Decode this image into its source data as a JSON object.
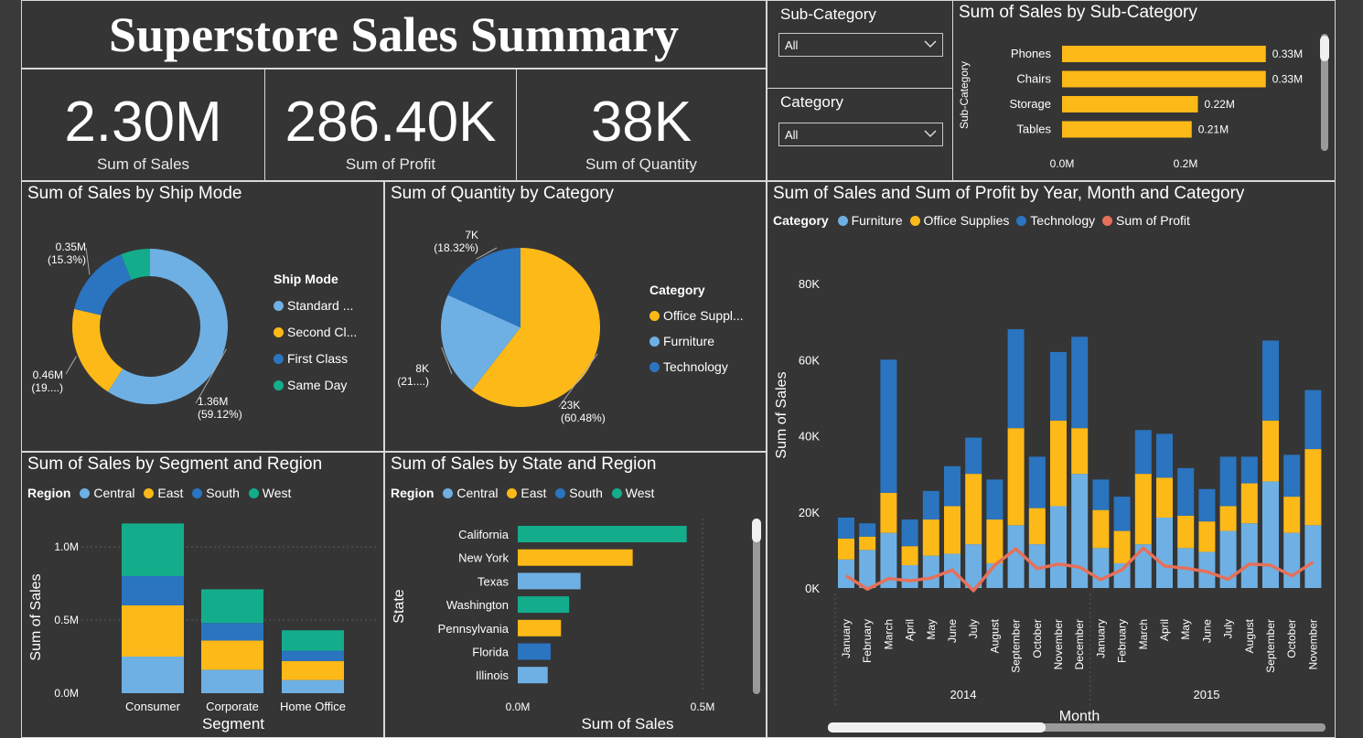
{
  "title": "Superstore Sales Summary",
  "kpis": [
    {
      "value": "2.30M",
      "label": "Sum of Sales"
    },
    {
      "value": "286.40K",
      "label": "Sum of Profit"
    },
    {
      "value": "38K",
      "label": "Sum of Quantity"
    }
  ],
  "slicers": {
    "subcategory": {
      "title": "Sub-Category",
      "value": "All"
    },
    "category": {
      "title": "Category",
      "value": "All"
    }
  },
  "colors": {
    "light_blue": "#6eb0e4",
    "yellow": "#fdb918",
    "dark_blue": "#2a74c0",
    "teal": "#13ad8c",
    "profit": "#e5705a"
  },
  "charts": {
    "subcat": {
      "title": "Sum of Sales by Sub-Category",
      "ylabel": "Sub-Category",
      "ticks": [
        "0.0M",
        "0.2M"
      ],
      "rows": [
        {
          "label": "Phones",
          "value": 0.33,
          "text": "0.33M"
        },
        {
          "label": "Chairs",
          "value": 0.33,
          "text": "0.33M"
        },
        {
          "label": "Storage",
          "value": 0.22,
          "text": "0.22M"
        },
        {
          "label": "Tables",
          "value": 0.21,
          "text": "0.21M"
        }
      ]
    },
    "shipmode": {
      "title": "Sum of Sales by Ship Mode",
      "legend_title": "Ship Mode",
      "slices": [
        {
          "name": "Standard ...",
          "value": 1.36,
          "pct": 59.12,
          "l1": "1.36M",
          "l2": "(59.12%)"
        },
        {
          "name": "Second Cl...",
          "value": 0.46,
          "pct": 19.5,
          "l1": "0.46M",
          "l2": "(19....)"
        },
        {
          "name": "First Class",
          "value": 0.35,
          "pct": 15.3,
          "l1": "0.35M",
          "l2": "(15.3%)"
        },
        {
          "name": "Same Day",
          "value": 0.13,
          "pct": 6.08,
          "l1": "",
          "l2": ""
        }
      ]
    },
    "qtycat": {
      "title": "Sum of Quantity by Category",
      "legend_title": "Category",
      "slices": [
        {
          "name": "Office Suppl...",
          "value": 23,
          "pct": 60.48,
          "l1": "23K",
          "l2": "(60.48%)"
        },
        {
          "name": "Furniture",
          "value": 8,
          "pct": 21.2,
          "l1": "8K",
          "l2": "(21....)"
        },
        {
          "name": "Technology",
          "value": 7,
          "pct": 18.32,
          "l1": "7K",
          "l2": "(18.32%)"
        }
      ]
    },
    "segment": {
      "title": "Sum of Sales by Segment and Region",
      "legend_title": "Region",
      "legend": [
        "Central",
        "East",
        "South",
        "West"
      ],
      "xlabel": "Segment",
      "ylabel": "Sum of Sales",
      "yticks": [
        "0.0M",
        "0.5M",
        "1.0M"
      ],
      "categories": [
        "Consumer",
        "Corporate",
        "Home Office"
      ],
      "series": [
        {
          "name": "Central",
          "values": [
            0.25,
            0.16,
            0.09
          ]
        },
        {
          "name": "East",
          "values": [
            0.35,
            0.2,
            0.13
          ]
        },
        {
          "name": "South",
          "values": [
            0.2,
            0.12,
            0.07
          ]
        },
        {
          "name": "West",
          "values": [
            0.36,
            0.23,
            0.14
          ]
        }
      ]
    },
    "state": {
      "title": "Sum of Sales by State and Region",
      "legend_title": "Region",
      "legend": [
        "Central",
        "East",
        "South",
        "West"
      ],
      "xlabel": "Sum of Sales",
      "ylabel": "State",
      "xticks": [
        "0.0M",
        "0.5M"
      ],
      "rows": [
        {
          "label": "California",
          "value": 0.457,
          "region": "West"
        },
        {
          "label": "New York",
          "value": 0.311,
          "region": "East"
        },
        {
          "label": "Texas",
          "value": 0.17,
          "region": "Central"
        },
        {
          "label": "Washington",
          "value": 0.139,
          "region": "West"
        },
        {
          "label": "Pennsylvania",
          "value": 0.117,
          "region": "East"
        },
        {
          "label": "Florida",
          "value": 0.089,
          "region": "South"
        },
        {
          "label": "Illinois",
          "value": 0.081,
          "region": "Central"
        }
      ]
    },
    "monthly": {
      "title": "Sum of Sales and Sum of Profit by Year, Month and Category",
      "legend_title": "Category",
      "legend": [
        "Furniture",
        "Office Supplies",
        "Technology",
        "Sum of Profit"
      ],
      "ylabel": "Sum of Sales",
      "xlabel": "Month",
      "yticks": [
        "0K",
        "20K",
        "40K",
        "60K",
        "80K"
      ],
      "years": [
        "2014",
        "2015"
      ],
      "months": [
        "January",
        "February",
        "March",
        "April",
        "May",
        "June",
        "July",
        "August",
        "September",
        "October",
        "November",
        "December",
        "January",
        "February",
        "March",
        "April",
        "May",
        "June",
        "July",
        "August",
        "September",
        "October",
        "November"
      ],
      "furniture": [
        7.5,
        10,
        14.5,
        6,
        8.5,
        9,
        11.5,
        6.5,
        16.5,
        11.5,
        21.5,
        30,
        10.5,
        6.5,
        11.5,
        18.5,
        10.5,
        9.5,
        15,
        17,
        28,
        14.5,
        16.5
      ],
      "office": [
        5.5,
        3.5,
        10.5,
        5,
        9.5,
        12.5,
        18.5,
        11.5,
        25.5,
        9.5,
        22.5,
        12,
        10,
        8.5,
        18.5,
        10.5,
        8.5,
        8,
        6.5,
        10.5,
        16,
        9.5,
        20
      ],
      "technology": [
        5.5,
        3.5,
        35,
        7,
        7.5,
        10.5,
        9.5,
        10.5,
        26,
        13.5,
        18,
        24,
        8,
        9,
        11.5,
        11.5,
        12.5,
        8.5,
        13,
        7,
        21,
        11,
        15.5
      ],
      "profit": [
        3.2,
        -0.3,
        2.5,
        1.9,
        2.6,
        4.7,
        -0.7,
        6,
        10.3,
        5.1,
        6.3,
        5.5,
        2.2,
        4.8,
        10.5,
        5.8,
        5.2,
        4.3,
        2.3,
        6.3,
        6,
        3.2,
        6.8
      ]
    }
  }
}
